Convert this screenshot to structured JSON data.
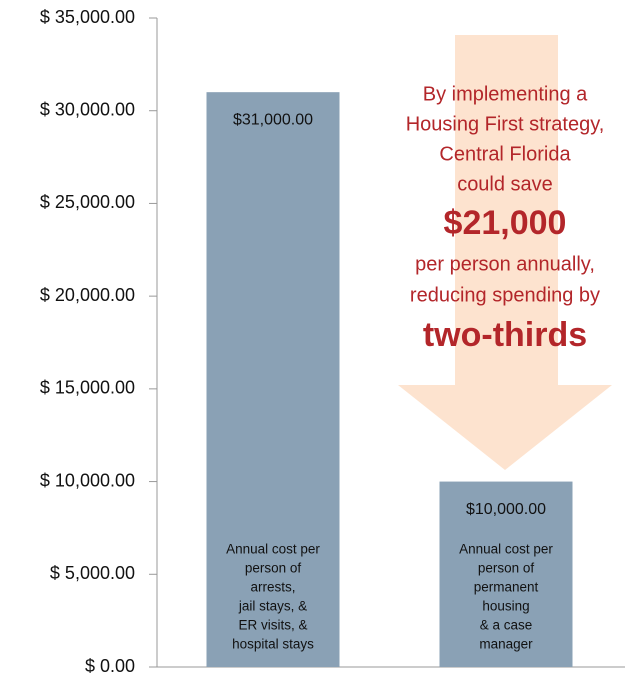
{
  "chart_data": {
    "type": "bar",
    "categories": [
      [
        "Annual cost per",
        "person of",
        "arrests,",
        "jail stays, &",
        "ER visits, &",
        "hospital stays"
      ],
      [
        "Annual cost per",
        "person of",
        "permanent",
        "housing",
        "& a case",
        "manager"
      ]
    ],
    "values": [
      31000,
      10000
    ],
    "value_labels": [
      "$31,000.00",
      "$10,000.00"
    ],
    "color": "#8aa1b5",
    "ylim": [
      0,
      35000
    ],
    "yticks": [
      {
        "value": 0,
        "label": "$ 0.00"
      },
      {
        "value": 5000,
        "label": "$ 5,000.00"
      },
      {
        "value": 10000,
        "label": "$ 10,000.00"
      },
      {
        "value": 15000,
        "label": "$ 15,000.00"
      },
      {
        "value": 20000,
        "label": "$ 20,000.00"
      },
      {
        "value": 25000,
        "label": "$ 25,000.00"
      },
      {
        "value": 30000,
        "label": "$ 30,000.00"
      },
      {
        "value": 35000,
        "label": "$ 35,000.00"
      }
    ],
    "grid": false,
    "annotation": [
      "By implementing a",
      "Housing First strategy,",
      "Central Florida",
      "could save",
      "$21,000",
      "per person annually,",
      "reducing spending by",
      "two-thirds"
    ]
  }
}
